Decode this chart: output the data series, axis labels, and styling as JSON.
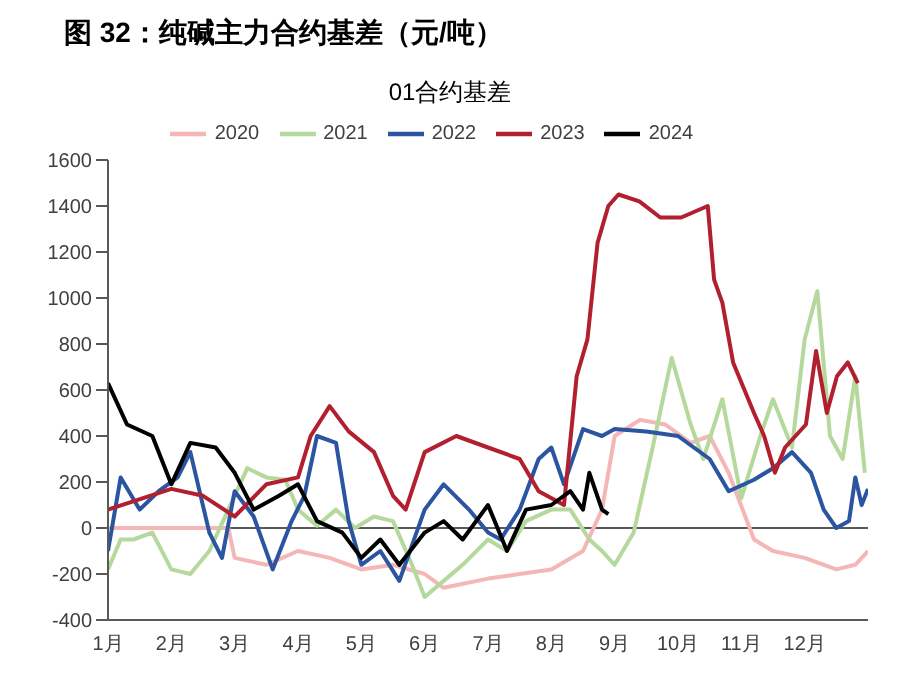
{
  "chart_data": {
    "type": "line",
    "title": "图 32：纯碱主力合约基差（元/吨）",
    "subtitle": "01合约基差",
    "legend": "top",
    "marker": "none",
    "grid": false,
    "xlim": [
      1,
      13
    ],
    "xticks": [
      {
        "value": 1,
        "label": "1月"
      },
      {
        "value": 2,
        "label": "2月"
      },
      {
        "value": 3,
        "label": "3月"
      },
      {
        "value": 4,
        "label": "4月"
      },
      {
        "value": 5,
        "label": "5月"
      },
      {
        "value": 6,
        "label": "6月"
      },
      {
        "value": 7,
        "label": "7月"
      },
      {
        "value": 8,
        "label": "8月"
      },
      {
        "value": 9,
        "label": "9月"
      },
      {
        "value": 10,
        "label": "10月"
      },
      {
        "value": 11,
        "label": "11月"
      },
      {
        "value": 12,
        "label": "12月"
      }
    ],
    "ylim": [
      -400,
      1600
    ],
    "yticks": [
      -400,
      -200,
      0,
      200,
      400,
      600,
      800,
      1000,
      1200,
      1400,
      1600
    ],
    "ref_lines": [
      {
        "axis": "y",
        "value": 0,
        "color": "#595959"
      }
    ],
    "series": [
      {
        "name": "2020",
        "color": "#f4b6b6",
        "x": [
          1,
          2,
          2.9,
          3,
          3.5,
          4,
          4.5,
          5,
          5.5,
          6,
          6.3,
          7,
          7.5,
          8,
          8.5,
          8.8,
          9,
          9.4,
          9.8,
          10.2,
          10.5,
          10.8,
          11.2,
          11.5,
          12,
          12.5,
          12.8,
          13
        ],
        "values": [
          0,
          0,
          0,
          -130,
          -160,
          -100,
          -130,
          -180,
          -160,
          -200,
          -260,
          -220,
          -200,
          -180,
          -100,
          80,
          400,
          470,
          450,
          370,
          400,
          240,
          -50,
          -100,
          -130,
          -180,
          -160,
          -100
        ]
      },
      {
        "name": "2021",
        "color": "#b5d99c",
        "x": [
          1,
          1.2,
          1.4,
          1.7,
          2,
          2.3,
          2.6,
          2.9,
          3.2,
          3.5,
          3.8,
          4,
          4.3,
          4.6,
          4.9,
          5.2,
          5.5,
          5.8,
          6,
          6.3,
          6.6,
          7,
          7.3,
          7.6,
          8,
          8.3,
          8.6,
          8.8,
          9,
          9.3,
          9.6,
          9.9,
          10.2,
          10.4,
          10.7,
          11,
          11.3,
          11.5,
          11.8,
          12,
          12.2,
          12.4,
          12.6,
          12.8,
          12.95
        ],
        "values": [
          -180,
          -50,
          -50,
          -20,
          -180,
          -200,
          -100,
          80,
          260,
          220,
          210,
          80,
          10,
          80,
          0,
          50,
          30,
          -160,
          -300,
          -230,
          -160,
          -50,
          -100,
          30,
          80,
          80,
          -50,
          -100,
          -160,
          -20,
          350,
          740,
          450,
          300,
          560,
          130,
          400,
          560,
          350,
          820,
          1030,
          400,
          300,
          660,
          240
        ]
      },
      {
        "name": "2022",
        "color": "#2b55a0",
        "x": [
          1,
          1.2,
          1.5,
          1.8,
          2.1,
          2.3,
          2.6,
          2.8,
          3,
          3.3,
          3.6,
          3.9,
          4.1,
          4.3,
          4.6,
          4.8,
          5,
          5.3,
          5.6,
          6,
          6.3,
          6.7,
          7,
          7.2,
          7.5,
          7.8,
          8,
          8.2,
          8.5,
          8.8,
          9,
          9.5,
          10,
          10.5,
          10.8,
          11.2,
          11.5,
          11.8,
          12.1,
          12.3,
          12.5,
          12.7,
          12.8,
          12.9,
          13
        ],
        "values": [
          -100,
          220,
          80,
          160,
          220,
          330,
          -20,
          -130,
          160,
          50,
          -180,
          30,
          140,
          400,
          370,
          30,
          -160,
          -100,
          -230,
          80,
          190,
          80,
          -20,
          -50,
          80,
          300,
          350,
          190,
          430,
          400,
          430,
          420,
          400,
          300,
          160,
          210,
          260,
          330,
          240,
          80,
          0,
          30,
          220,
          100,
          170
        ]
      },
      {
        "name": "2023",
        "color": "#b22030",
        "x": [
          1,
          2,
          2.5,
          3,
          3.5,
          4,
          4.2,
          4.5,
          4.8,
          5.2,
          5.5,
          5.7,
          6,
          6.5,
          7,
          7.5,
          7.8,
          8.2,
          8.4,
          8.57,
          8.73,
          8.9,
          9.06,
          9.39,
          9.72,
          10.05,
          10.47,
          10.57,
          10.7,
          10.87,
          11.2,
          11.36,
          11.53,
          11.69,
          12.02,
          12.18,
          12.35,
          12.51,
          12.68,
          12.84
        ],
        "values": [
          80,
          170,
          140,
          50,
          190,
          220,
          400,
          530,
          420,
          330,
          140,
          80,
          330,
          400,
          350,
          300,
          160,
          100,
          660,
          820,
          1240,
          1400,
          1450,
          1420,
          1350,
          1350,
          1400,
          1080,
          980,
          720,
          500,
          400,
          240,
          350,
          450,
          770,
          500,
          660,
          720,
          630
        ]
      },
      {
        "name": "2024",
        "color": "#000000",
        "x": [
          1,
          1.3,
          1.7,
          2,
          2.3,
          2.7,
          3,
          3.3,
          3.7,
          4,
          4.3,
          4.7,
          5,
          5.3,
          5.6,
          6,
          6.3,
          6.6,
          7,
          7.3,
          7.6,
          8,
          8.3,
          8.5,
          8.6,
          8.8,
          8.9
        ],
        "values": [
          630,
          450,
          400,
          190,
          370,
          350,
          240,
          80,
          140,
          190,
          30,
          -20,
          -130,
          -50,
          -160,
          -20,
          30,
          -50,
          100,
          -100,
          80,
          100,
          160,
          80,
          240,
          80,
          60
        ]
      }
    ]
  }
}
